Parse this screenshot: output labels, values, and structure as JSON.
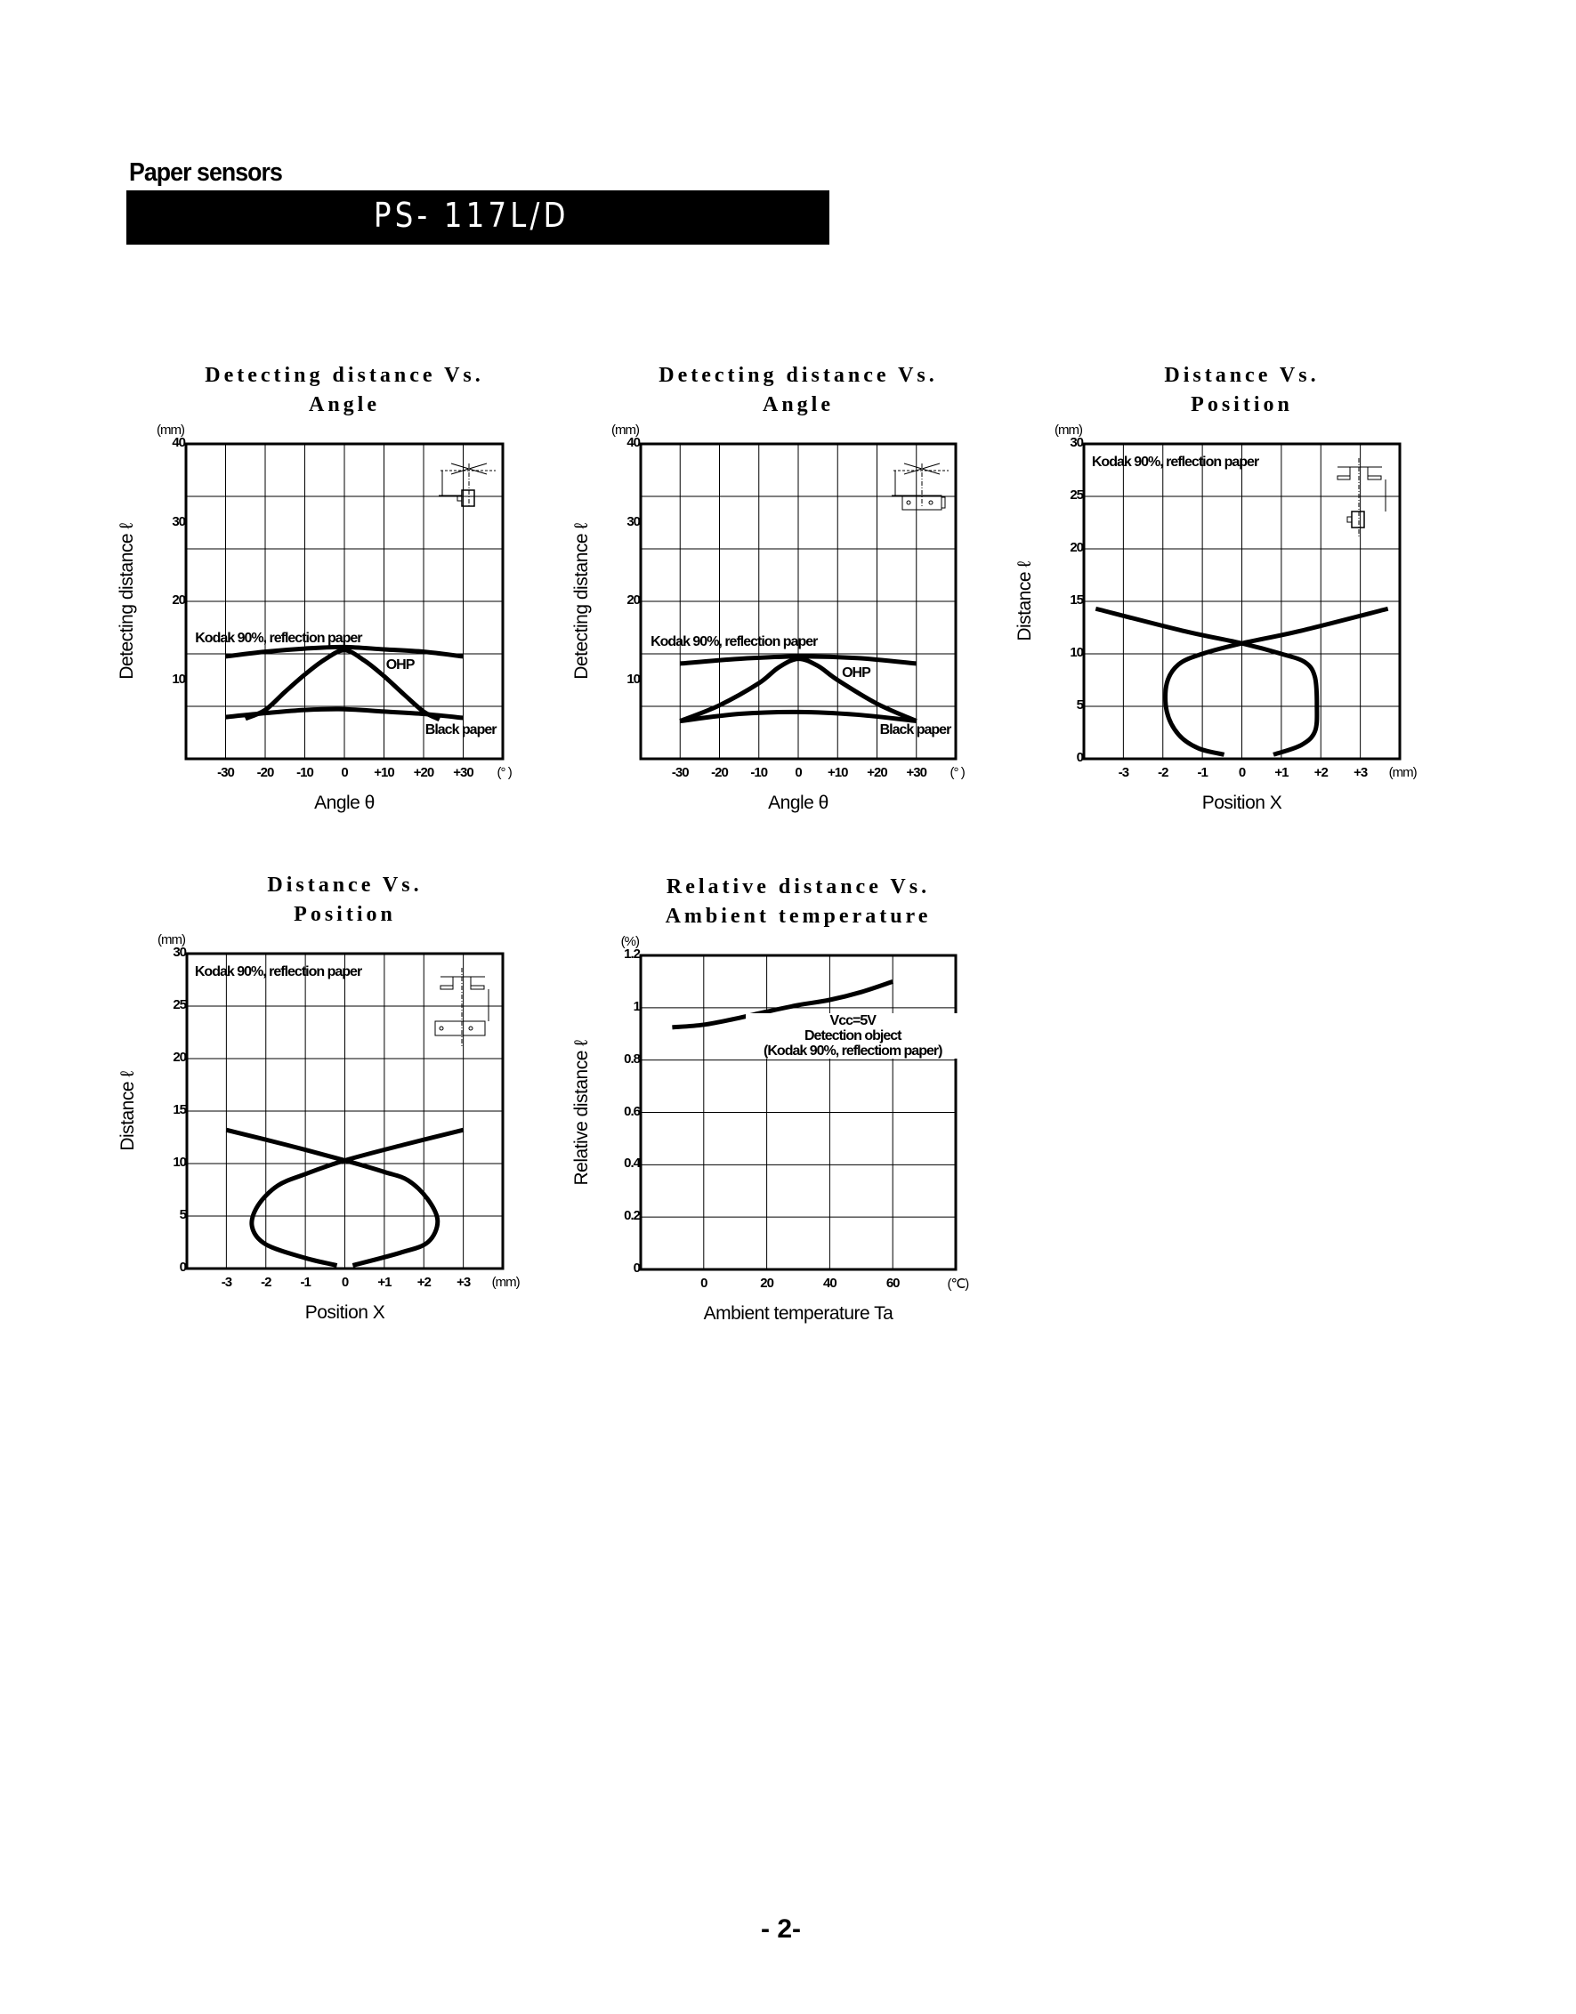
{
  "header": {
    "section": "Paper sensors",
    "model": "PS- 117L/D"
  },
  "page_number": "- 2-",
  "chart_data": [
    {
      "type": "line",
      "title": [
        "Detecting distance Vs.",
        "Angle"
      ],
      "xlabel": "Angle θ",
      "ylabel": "Detecting distance ℓ",
      "x_unit": "(° )",
      "y_unit": "(mm)",
      "xlim": [
        -40,
        40
      ],
      "ylim": [
        0,
        40
      ],
      "x_ticks": [
        {
          "v": -30,
          "label": "-30"
        },
        {
          "v": -20,
          "label": "-20"
        },
        {
          "v": -10,
          "label": "-10"
        },
        {
          "v": 0,
          "label": "0"
        },
        {
          "v": 10,
          "label": "+10"
        },
        {
          "v": 20,
          "label": "+20"
        },
        {
          "v": 30,
          "label": "+30"
        }
      ],
      "y_ticks": [
        {
          "v": 10,
          "label": "10"
        },
        {
          "v": 20,
          "label": "20"
        },
        {
          "v": 30,
          "label": "30"
        },
        {
          "v": 40,
          "label": "40"
        }
      ],
      "grid": true,
      "x_grid": [
        -30,
        -20,
        -10,
        0,
        10,
        20,
        30
      ],
      "y_grid_divisions": 6,
      "inset": "angle-sensor-diagram-side",
      "series": [
        {
          "name": "Kodak 90%, reflection paper",
          "points": [
            [
              -30,
              13.0
            ],
            [
              -20,
              13.6
            ],
            [
              -10,
              14.0
            ],
            [
              0,
              14.2
            ],
            [
              10,
              13.9
            ],
            [
              20,
              13.6
            ],
            [
              30,
              13.0
            ]
          ]
        },
        {
          "name": "OHP",
          "points": [
            [
              -25,
              5.1
            ],
            [
              -20,
              6.2
            ],
            [
              -15,
              8.5
            ],
            [
              -10,
              10.7
            ],
            [
              -5,
              12.6
            ],
            [
              0,
              13.8
            ],
            [
              5,
              12.5
            ],
            [
              10,
              10.5
            ],
            [
              15,
              8.2
            ],
            [
              20,
              6.0
            ],
            [
              24,
              5.0
            ]
          ]
        },
        {
          "name": "Black paper",
          "points": [
            [
              -30,
              5.3
            ],
            [
              -20,
              5.8
            ],
            [
              -10,
              6.2
            ],
            [
              0,
              6.3
            ],
            [
              10,
              6.0
            ],
            [
              20,
              5.7
            ],
            [
              30,
              5.2
            ]
          ]
        }
      ]
    },
    {
      "type": "line",
      "title": [
        "Detecting distance Vs.",
        "Angle"
      ],
      "xlabel": "Angle θ",
      "ylabel": "Detecting distance ℓ",
      "x_unit": "(° )",
      "y_unit": "(mm)",
      "xlim": [
        -40,
        40
      ],
      "ylim": [
        0,
        40
      ],
      "x_ticks": [
        {
          "v": -30,
          "label": "-30"
        },
        {
          "v": -20,
          "label": "-20"
        },
        {
          "v": -10,
          "label": "-10"
        },
        {
          "v": 0,
          "label": "0"
        },
        {
          "v": 10,
          "label": "+10"
        },
        {
          "v": 20,
          "label": "+20"
        },
        {
          "v": 30,
          "label": "+30"
        }
      ],
      "y_ticks": [
        {
          "v": 10,
          "label": "10"
        },
        {
          "v": 20,
          "label": "20"
        },
        {
          "v": 30,
          "label": "30"
        },
        {
          "v": 40,
          "label": "40"
        }
      ],
      "grid": true,
      "x_grid": [
        -30,
        -20,
        -10,
        0,
        10,
        20,
        30
      ],
      "y_grid_divisions": 6,
      "inset": "angle-sensor-diagram-flat",
      "series": [
        {
          "name": "Kodak 90%, reflection paper",
          "points": [
            [
              -30,
              12.1
            ],
            [
              -15,
              12.7
            ],
            [
              0,
              13.0
            ],
            [
              15,
              12.8
            ],
            [
              30,
              12.1
            ]
          ]
        },
        {
          "name": "OHP",
          "points": [
            [
              -30,
              4.8
            ],
            [
              -20,
              6.8
            ],
            [
              -10,
              9.6
            ],
            [
              -5,
              11.6
            ],
            [
              0,
              12.7
            ],
            [
              5,
              11.8
            ],
            [
              10,
              10.0
            ],
            [
              20,
              7.0
            ],
            [
              30,
              4.8
            ]
          ]
        },
        {
          "name": "Black paper",
          "points": [
            [
              -30,
              4.8
            ],
            [
              -15,
              5.7
            ],
            [
              0,
              5.95
            ],
            [
              15,
              5.6
            ],
            [
              30,
              4.8
            ]
          ]
        }
      ]
    },
    {
      "type": "line",
      "title": [
        "Distance Vs.",
        "Position"
      ],
      "xlabel": "Position  X",
      "ylabel": "Distance  ℓ",
      "x_unit": "(mm)",
      "y_unit": "(mm)",
      "xlim": [
        -4,
        4
      ],
      "ylim": [
        0,
        30
      ],
      "x_ticks": [
        {
          "v": -3,
          "label": "-3"
        },
        {
          "v": -2,
          "label": "-2"
        },
        {
          "v": -1,
          "label": "-1"
        },
        {
          "v": 0,
          "label": "0"
        },
        {
          "v": 1,
          "label": "+1"
        },
        {
          "v": 2,
          "label": "+2"
        },
        {
          "v": 3,
          "label": "+3"
        }
      ],
      "y_ticks": [
        {
          "v": 0,
          "label": "0"
        },
        {
          "v": 5,
          "label": "5"
        },
        {
          "v": 10,
          "label": "10"
        },
        {
          "v": 15,
          "label": "15"
        },
        {
          "v": 20,
          "label": "20"
        },
        {
          "v": 25,
          "label": "25"
        },
        {
          "v": 30,
          "label": "30"
        }
      ],
      "grid": true,
      "x_grid": [
        -3,
        -2,
        -1,
        0,
        1,
        2,
        3
      ],
      "y_grid_divisions": 6,
      "inset": "position-sensor-diagram-side",
      "annotation": "Kodak 90%, reflection paper",
      "series": [
        {
          "points": [
            [
              -3.7,
              14.3
            ],
            [
              -1.5,
              12.2
            ],
            [
              0,
              11.0
            ],
            [
              1.0,
              10.0
            ],
            [
              1.6,
              9.2
            ],
            [
              1.85,
              7.8
            ],
            [
              1.9,
              5.0
            ],
            [
              1.85,
              2.6
            ],
            [
              1.5,
              1.3
            ],
            [
              0.8,
              0.4
            ]
          ]
        },
        {
          "points": [
            [
              3.7,
              14.3
            ],
            [
              1.5,
              12.2
            ],
            [
              0,
              11.0
            ],
            [
              -1.0,
              10.0
            ],
            [
              -1.6,
              9.0
            ],
            [
              -1.9,
              7.2
            ],
            [
              -1.9,
              4.5
            ],
            [
              -1.6,
              2.3
            ],
            [
              -1.1,
              1.0
            ],
            [
              -0.45,
              0.4
            ]
          ]
        }
      ]
    },
    {
      "type": "line",
      "title": [
        "Distance Vs.",
        "Position"
      ],
      "xlabel": "Position  X",
      "ylabel": "Distance  ℓ",
      "x_unit": "(mm)",
      "y_unit": "(mm)",
      "xlim": [
        -4,
        4
      ],
      "ylim": [
        0,
        30
      ],
      "x_ticks": [
        {
          "v": -3,
          "label": "-3"
        },
        {
          "v": -2,
          "label": "-2"
        },
        {
          "v": -1,
          "label": "-1"
        },
        {
          "v": 0,
          "label": "0"
        },
        {
          "v": 1,
          "label": "+1"
        },
        {
          "v": 2,
          "label": "+2"
        },
        {
          "v": 3,
          "label": "+3"
        }
      ],
      "y_ticks": [
        {
          "v": 0,
          "label": "0"
        },
        {
          "v": 5,
          "label": "5"
        },
        {
          "v": 10,
          "label": "10"
        },
        {
          "v": 15,
          "label": "15"
        },
        {
          "v": 20,
          "label": "20"
        },
        {
          "v": 25,
          "label": "25"
        },
        {
          "v": 30,
          "label": "30"
        }
      ],
      "grid": true,
      "x_grid": [
        -3,
        -2,
        -1,
        0,
        1,
        2,
        3
      ],
      "y_grid_divisions": 6,
      "inset": "position-sensor-diagram-flat",
      "annotation": "Kodak 90%, reflection paper",
      "series": [
        {
          "points": [
            [
              -3.0,
              13.2
            ],
            [
              -1.5,
              11.8
            ],
            [
              0,
              10.3
            ],
            [
              1.0,
              9.2
            ],
            [
              1.6,
              8.4
            ],
            [
              2.1,
              6.6
            ],
            [
              2.35,
              4.5
            ],
            [
              2.1,
              2.5
            ],
            [
              1.4,
              1.5
            ],
            [
              0.2,
              0.3
            ]
          ]
        },
        {
          "points": [
            [
              3.0,
              13.2
            ],
            [
              1.5,
              11.8
            ],
            [
              0,
              10.3
            ],
            [
              -1.0,
              9.0
            ],
            [
              -1.7,
              7.9
            ],
            [
              -2.2,
              6.0
            ],
            [
              -2.35,
              4.0
            ],
            [
              -2.0,
              2.3
            ],
            [
              -1.0,
              1.0
            ],
            [
              -0.2,
              0.3
            ]
          ]
        }
      ]
    },
    {
      "type": "line",
      "title": [
        "Relative distance Vs.",
        "Ambient temperature"
      ],
      "xlabel": "Ambient temperature  Ta",
      "ylabel": "Relative distance  ℓ",
      "x_unit": "(℃)",
      "y_unit": "(%)",
      "xlim": [
        -20,
        80
      ],
      "ylim": [
        0,
        1.2
      ],
      "x_ticks": [
        {
          "v": 0,
          "label": "0"
        },
        {
          "v": 20,
          "label": "20"
        },
        {
          "v": 40,
          "label": "40"
        },
        {
          "v": 60,
          "label": "60"
        }
      ],
      "y_ticks": [
        {
          "v": 0,
          "label": "0"
        },
        {
          "v": 0.2,
          "label": "0.2"
        },
        {
          "v": 0.4,
          "label": "0.4"
        },
        {
          "v": 0.6,
          "label": "0.6"
        },
        {
          "v": 0.8,
          "label": "0.8"
        },
        {
          "v": 1,
          "label": "1"
        },
        {
          "v": 1.2,
          "label": "1.2"
        }
      ],
      "grid": true,
      "x_grid": [
        0,
        20,
        40,
        60
      ],
      "y_grid_divisions": 6,
      "annotation_lines": [
        "Vcc=5V",
        "Detection object",
        "(Kodak 90%, reflectiom paper)"
      ],
      "series": [
        {
          "points": [
            [
              -10,
              0.925
            ],
            [
              0,
              0.935
            ],
            [
              10,
              0.958
            ],
            [
              20,
              0.985
            ],
            [
              30,
              1.01
            ],
            [
              40,
              1.03
            ],
            [
              50,
              1.06
            ],
            [
              60,
              1.1
            ]
          ]
        }
      ]
    }
  ]
}
